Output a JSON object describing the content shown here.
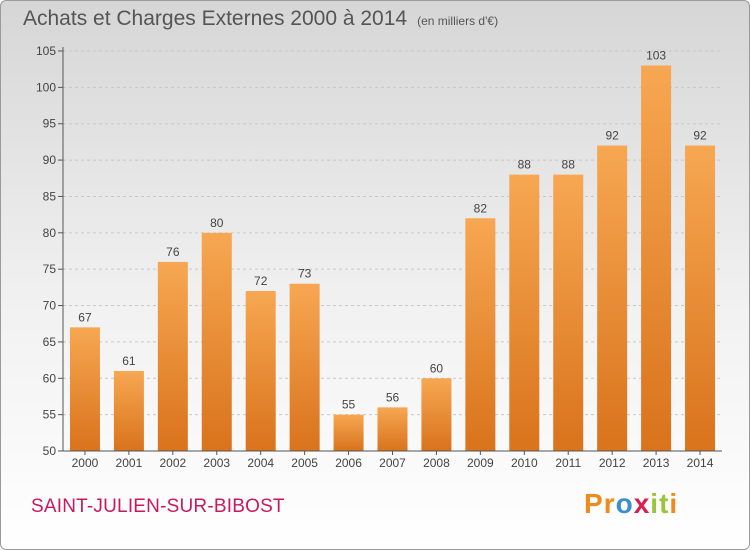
{
  "header": {
    "title": "Achats et Charges Externes 2000 à 2014",
    "subtitle": "(en milliers d'€)"
  },
  "footer": {
    "commune": "SAINT-JULIEN-SUR-BIBOST",
    "logo_letters": [
      "P",
      "r",
      "o",
      "x",
      "i",
      "t",
      "i"
    ],
    "logo_colors": [
      "#f08a1c",
      "#f08a1c",
      "#3b8ed0",
      "#d81f4e",
      "#9bc43a",
      "#9bc43a",
      "#f08a1c"
    ]
  },
  "colors": {
    "bar_light": "#f7a752",
    "bar_dark": "#d9731c",
    "axis": "#555555",
    "grid": "#c8c8c8"
  },
  "chart_data": {
    "type": "bar",
    "categories": [
      "2000",
      "2001",
      "2002",
      "2003",
      "2004",
      "2005",
      "2006",
      "2007",
      "2008",
      "2009",
      "2010",
      "2011",
      "2012",
      "2013",
      "2014"
    ],
    "values": [
      67,
      61,
      76,
      80,
      72,
      73,
      55,
      56,
      60,
      82,
      88,
      88,
      92,
      103,
      92
    ],
    "ylim": [
      50,
      105
    ],
    "yticks": [
      50,
      55,
      60,
      65,
      70,
      75,
      80,
      85,
      90,
      95,
      100,
      105
    ],
    "grid": true,
    "title": "Achats et Charges Externes 2000 à 2014",
    "xlabel": "",
    "ylabel": ""
  }
}
